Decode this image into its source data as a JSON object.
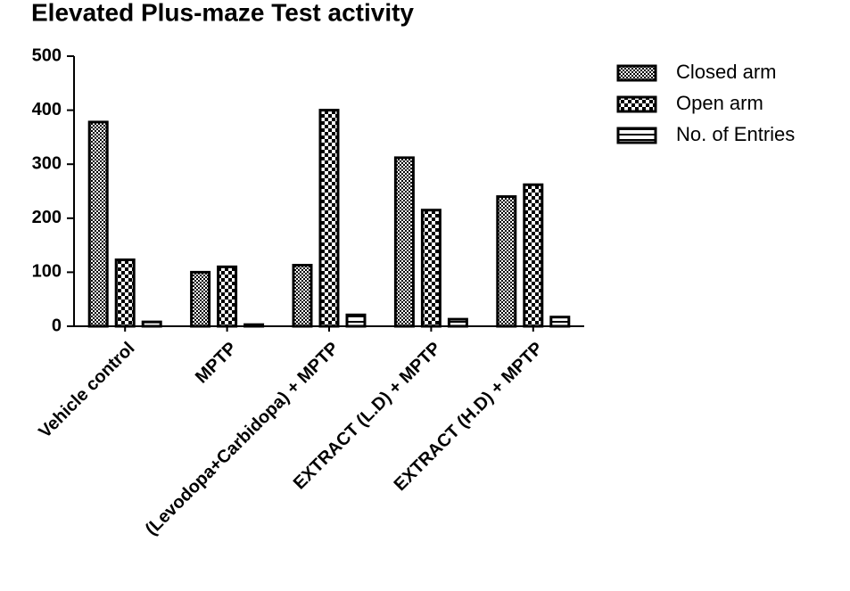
{
  "chart_data": {
    "type": "bar",
    "title": "Elevated Plus-maze Test activity",
    "categories": [
      "Vehicle control",
      "MPTP",
      "(Levodopa+Carbidopa) + MPTP",
      "EXTRACT (L.D) + MPTP",
      "EXTRACT (H.D) + MPTP"
    ],
    "series": [
      {
        "name": "Closed arm",
        "color": "#000000",
        "values": [
          378,
          100,
          113,
          312,
          240
        ]
      },
      {
        "name": "Open arm",
        "color": "#000000",
        "values": [
          123,
          110,
          400,
          215,
          262
        ]
      },
      {
        "name": "No. of Entries",
        "color": "#000000",
        "values": [
          8,
          3,
          21,
          13,
          17
        ]
      }
    ],
    "ylim": [
      0,
      500
    ],
    "yticks": [
      0,
      100,
      200,
      300,
      400,
      500
    ],
    "grid": false,
    "legend": "right"
  }
}
